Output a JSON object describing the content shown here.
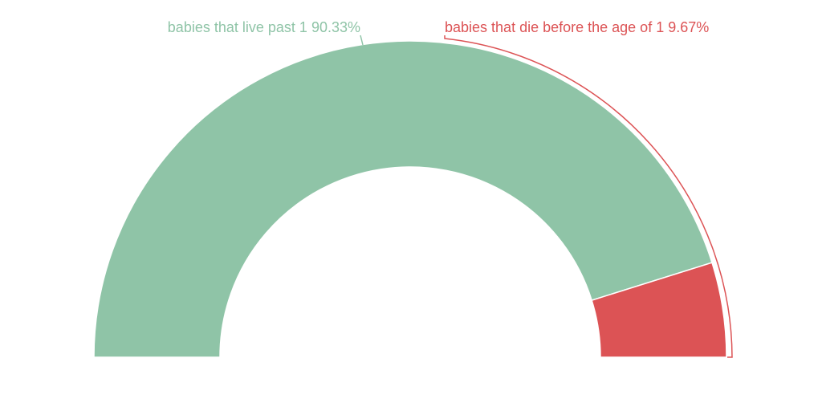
{
  "chart_data": {
    "type": "pie",
    "variant": "semi-donut",
    "title": "",
    "slices": [
      {
        "label": "babies that live past 1",
        "value": 90.33,
        "display": "90.33%",
        "color": "#8fc4a7"
      },
      {
        "label": "babies that die before the age of 1",
        "value": 9.67,
        "display": "9.67%",
        "color": "#dc5355"
      }
    ],
    "legend": "none",
    "grid": false
  }
}
